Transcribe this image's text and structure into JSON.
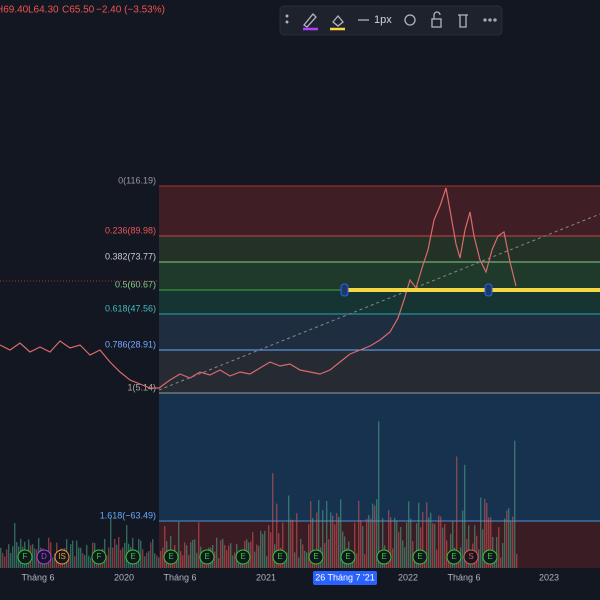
{
  "header": {
    "items": [
      "H69.40",
      "L64.30",
      "C65.50",
      "−2.40 (−3.53%)"
    ]
  },
  "toolbar": {
    "width_label": "1px"
  },
  "fib_levels": [
    "0(116.19)",
    "0.236(89.98)",
    "0.382(73.77)",
    "0.5(60.67)",
    "0.618(47.56)",
    "0.786(28.91)",
    "1(5.14)",
    "1.618(−63.49)"
  ],
  "time_axis": {
    "labels": [
      "Tháng 6",
      "2020",
      "Tháng 6",
      "2021",
      "2022",
      "Tháng 6",
      "2023"
    ],
    "crosshair": "26 Tháng 7 '21"
  },
  "events": [
    "F",
    "D",
    "IS",
    "F",
    "E",
    "E",
    "E",
    "E",
    "E",
    "E",
    "E",
    "E",
    "E",
    "E",
    "S",
    "E"
  ]
}
